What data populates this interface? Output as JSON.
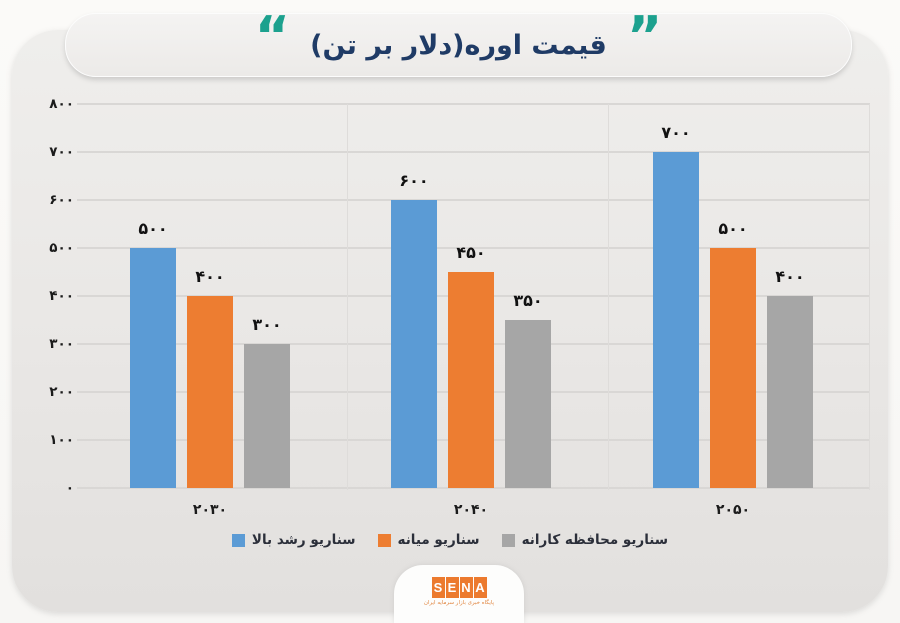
{
  "title": {
    "text": "قیمت اوره(دلار بر تن)",
    "quote_open": "“",
    "quote_close": "”"
  },
  "chart_data": {
    "type": "bar",
    "title": "قیمت اوره(دلار بر تن)",
    "categories": [
      "۲۰۳۰",
      "۲۰۴۰",
      "۲۰۵۰"
    ],
    "categories_values": [
      2030,
      2040,
      2050
    ],
    "series": [
      {
        "name": "سناریو رشد بالا",
        "color": "#5B9BD5",
        "values": [
          500,
          600,
          700
        ],
        "labels": [
          "۵۰۰",
          "۶۰۰",
          "۷۰۰"
        ]
      },
      {
        "name": "سناریو میانه",
        "color": "#ED7D31",
        "values": [
          400,
          450,
          500
        ],
        "labels": [
          "۴۰۰",
          "۴۵۰",
          "۵۰۰"
        ]
      },
      {
        "name": "سناریو محافظه کارانه",
        "color": "#A6A6A6",
        "values": [
          300,
          350,
          400
        ],
        "labels": [
          "۳۰۰",
          "۳۵۰",
          "۴۰۰"
        ]
      }
    ],
    "ylim": [
      0,
      800
    ],
    "ytick_step": 100,
    "yticks": [
      "۸۰۰",
      "۷۰۰",
      "۶۰۰",
      "۵۰۰",
      "۴۰۰",
      "۳۰۰",
      "۲۰۰",
      "۱۰۰",
      "۰"
    ],
    "grid": true,
    "legend_position": "bottom"
  },
  "footer": {
    "logo_letters": [
      "S",
      "E",
      "N",
      "A"
    ],
    "logo_subtext": "پایگاه خبری بازار سرمایه ایران"
  },
  "colors": {
    "accent_teal": "#1CA18E",
    "title_navy": "#1F3B66",
    "bar_blue": "#5B9BD5",
    "bar_orange": "#ED7D31",
    "bar_gray": "#A6A6A6",
    "logo_orange": "#EC7A2E"
  }
}
